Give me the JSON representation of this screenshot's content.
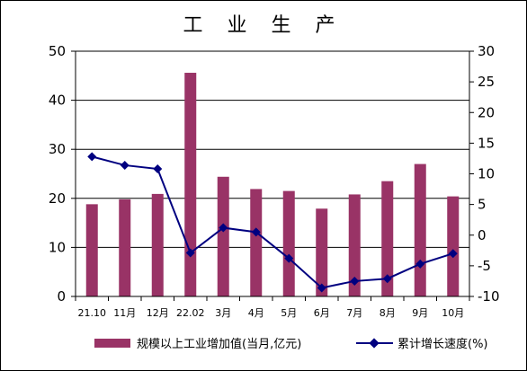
{
  "chart_data": {
    "type": "bar+line",
    "title": "工 业 生 产",
    "categories": [
      "21.10",
      "11月",
      "12月",
      "22.02",
      "3月",
      "4月",
      "5月",
      "6月",
      "7月",
      "8月",
      "9月",
      "10月"
    ],
    "series": [
      {
        "name": "规模以上工业增加值(当月,亿元)",
        "type": "bar",
        "axis": "left",
        "values": [
          18.8,
          19.8,
          20.9,
          45.6,
          24.4,
          21.9,
          21.5,
          17.9,
          20.8,
          23.5,
          27.0,
          20.4
        ],
        "color": "#993366"
      },
      {
        "name": "累计增长速度(%)",
        "type": "line",
        "axis": "right",
        "values": [
          12.8,
          11.4,
          10.8,
          -2.9,
          1.2,
          0.5,
          -3.8,
          -8.6,
          -7.5,
          -7.1,
          -4.7,
          -3.0
        ],
        "color": "#000080"
      }
    ],
    "yleft": {
      "min": 0,
      "max": 50,
      "step": 10,
      "ticks": [
        "0",
        "10",
        "20",
        "30",
        "40",
        "50"
      ]
    },
    "yright": {
      "min": -10,
      "max": 30,
      "step": 5,
      "ticks": [
        "-10",
        "-5",
        "0",
        "5",
        "10",
        "15",
        "20",
        "25",
        "30"
      ]
    },
    "grid": "horizontal",
    "legend": "bottom"
  }
}
